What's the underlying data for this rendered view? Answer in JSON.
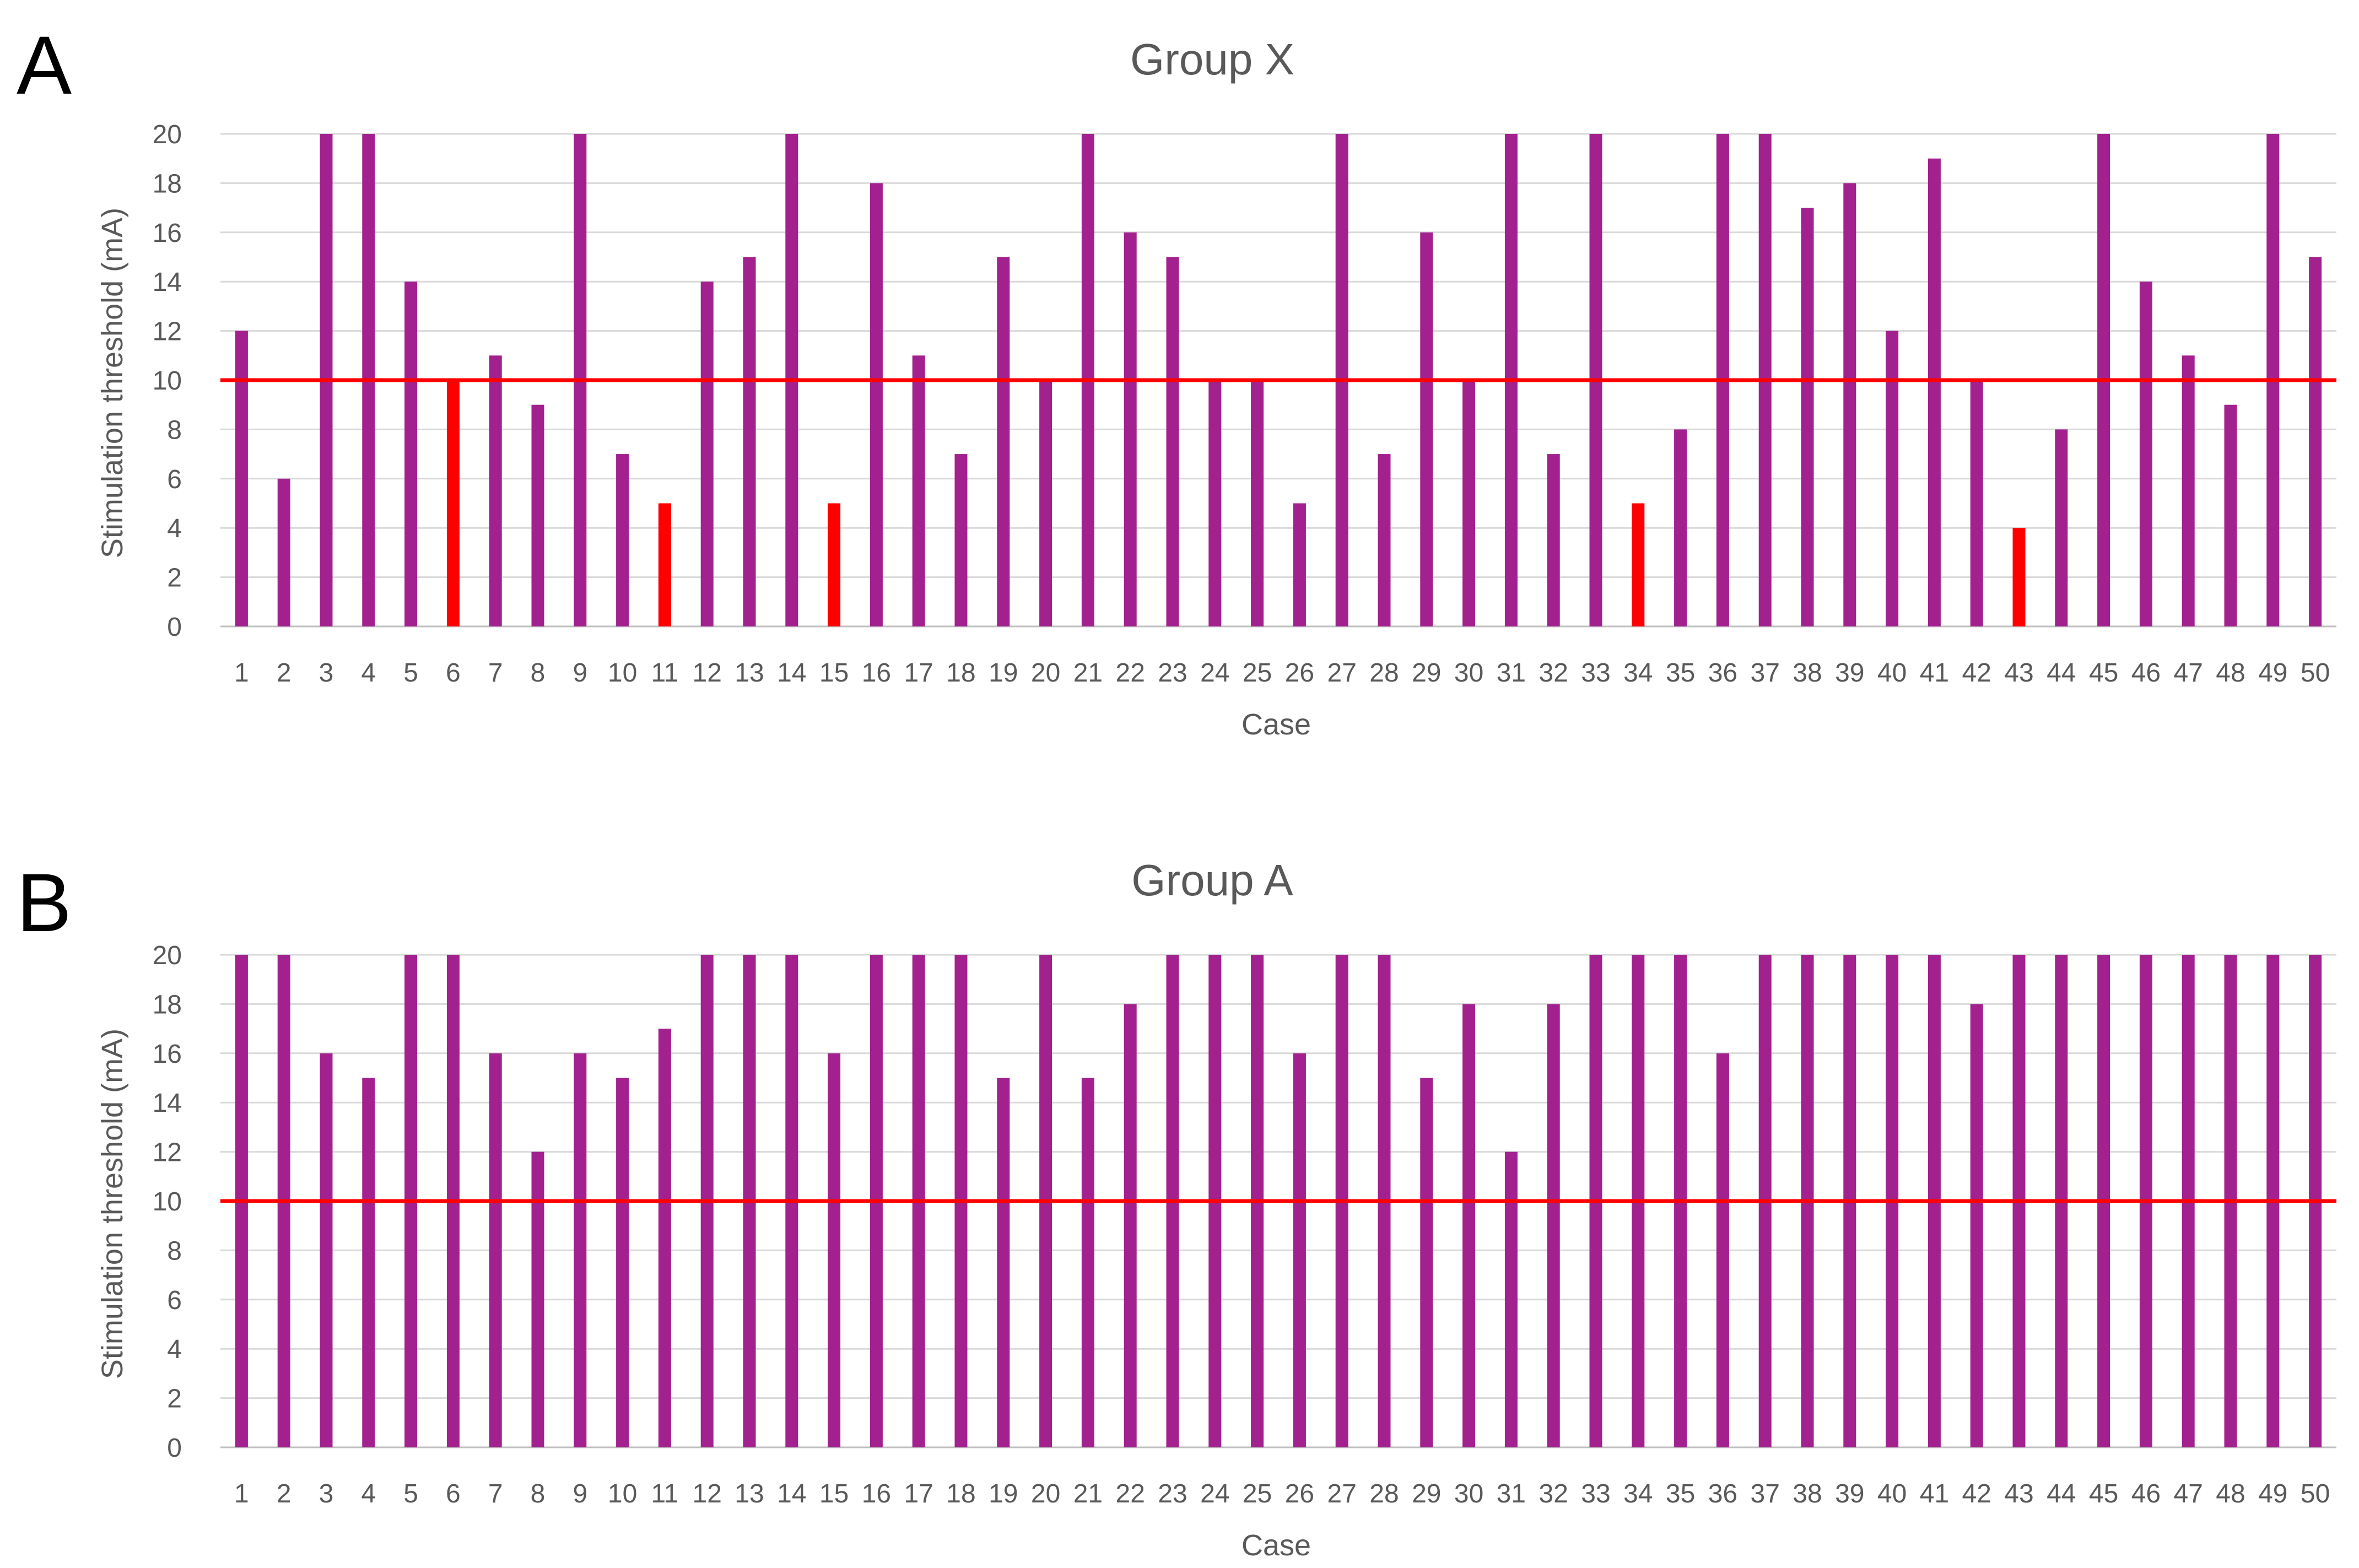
{
  "chart_data": [
    {
      "panel_label": "A",
      "type": "bar",
      "title": "Group X",
      "xlabel": "Case",
      "ylabel": "Stimulation threshold (mA)",
      "ylim": [
        0,
        20
      ],
      "yticks": [
        0,
        2,
        4,
        6,
        8,
        10,
        12,
        14,
        16,
        18,
        20
      ],
      "grid": true,
      "reference_line": {
        "value": 10,
        "color": "#ff0000"
      },
      "colors": {
        "default": "#a3208f",
        "highlight": "#ff0000"
      },
      "categories": [
        "1",
        "2",
        "3",
        "4",
        "5",
        "6",
        "7",
        "8",
        "9",
        "10",
        "11",
        "12",
        "13",
        "14",
        "15",
        "16",
        "17",
        "18",
        "19",
        "20",
        "21",
        "22",
        "23",
        "24",
        "25",
        "26",
        "27",
        "28",
        "29",
        "30",
        "31",
        "32",
        "33",
        "34",
        "35",
        "36",
        "37",
        "38",
        "39",
        "40",
        "41",
        "42",
        "43",
        "44",
        "45",
        "46",
        "47",
        "48",
        "49",
        "50"
      ],
      "values": [
        12,
        6,
        20,
        20,
        14,
        10,
        11,
        9,
        20,
        7,
        5,
        14,
        15,
        20,
        5,
        18,
        11,
        7,
        15,
        10,
        20,
        16,
        15,
        10,
        10,
        5,
        20,
        7,
        16,
        10,
        20,
        7,
        20,
        5,
        8,
        20,
        20,
        17,
        18,
        12,
        19,
        10,
        4,
        8,
        20,
        14,
        11,
        9,
        20,
        15
      ],
      "highlighted_cases": [
        "6",
        "11",
        "15",
        "34",
        "43"
      ]
    },
    {
      "panel_label": "B",
      "type": "bar",
      "title": "Group A",
      "xlabel": "Case",
      "ylabel": "Stimulation threshold (mA)",
      "ylim": [
        0,
        20
      ],
      "yticks": [
        0,
        2,
        4,
        6,
        8,
        10,
        12,
        14,
        16,
        18,
        20
      ],
      "grid": true,
      "reference_line": {
        "value": 10,
        "color": "#ff0000"
      },
      "colors": {
        "default": "#a3208f",
        "highlight": "#ff0000"
      },
      "categories": [
        "1",
        "2",
        "3",
        "4",
        "5",
        "6",
        "7",
        "8",
        "9",
        "10",
        "11",
        "12",
        "13",
        "14",
        "15",
        "16",
        "17",
        "18",
        "19",
        "20",
        "21",
        "22",
        "23",
        "24",
        "25",
        "26",
        "27",
        "28",
        "29",
        "30",
        "31",
        "32",
        "33",
        "34",
        "35",
        "36",
        "37",
        "38",
        "39",
        "40",
        "41",
        "42",
        "43",
        "44",
        "45",
        "46",
        "47",
        "48",
        "49",
        "50"
      ],
      "values": [
        20,
        20,
        16,
        15,
        20,
        20,
        16,
        12,
        16,
        15,
        17,
        20,
        20,
        20,
        16,
        20,
        20,
        20,
        15,
        20,
        15,
        18,
        20,
        20,
        20,
        16,
        20,
        20,
        15,
        18,
        12,
        18,
        20,
        20,
        20,
        16,
        20,
        20,
        20,
        20,
        20,
        18,
        20,
        20,
        20,
        20,
        20,
        20,
        20,
        20
      ],
      "highlighted_cases": []
    }
  ]
}
